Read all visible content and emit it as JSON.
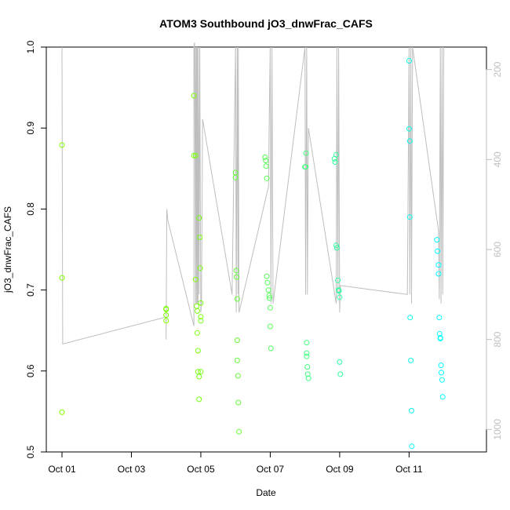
{
  "chart_data": {
    "type": "scatter",
    "title": "ATOM3 Southbound jO3_dnwFrac_CAFS",
    "xlabel": "Date",
    "ylabel": "jO3_dnwFrac_CAFS",
    "x_unit": "days from Oct 01",
    "xlim": [
      0,
      11.8
    ],
    "ylim": [
      0.5,
      1.0
    ],
    "x_ticks": [
      {
        "value": 0,
        "label": "Oct 01"
      },
      {
        "value": 2,
        "label": "Oct 03"
      },
      {
        "value": 4,
        "label": "Oct 05"
      },
      {
        "value": 6,
        "label": "Oct 07"
      },
      {
        "value": 8,
        "label": "Oct 09"
      },
      {
        "value": 10,
        "label": "Oct 11"
      }
    ],
    "y_ticks": [
      "0.5",
      "0.6",
      "0.7",
      "0.8",
      "0.9",
      "1.0"
    ],
    "y2_axis": {
      "lim": [
        1050,
        150
      ],
      "ticks": [
        "200",
        "400",
        "600",
        "800",
        "1000"
      ],
      "color": "#bebebe"
    },
    "colors": {
      "line": "#bebebe",
      "points_start": "#7fff00",
      "points_end": "#00ffff"
    },
    "grid": false,
    "series": [
      {
        "kind": "points",
        "x": [
          0.0,
          0.0,
          0.0,
          3.0,
          3.0,
          3.0,
          3.0,
          3.8,
          3.8,
          3.85,
          3.85,
          3.88,
          3.9,
          3.9,
          3.92,
          3.92,
          3.95,
          3.95,
          3.95,
          3.97,
          3.98,
          4.0,
          4.0,
          4.0,
          4.0,
          5.0,
          5.0,
          5.02,
          5.03,
          5.05,
          5.05,
          5.05,
          5.07,
          5.08,
          5.1,
          5.85,
          5.87,
          5.88,
          5.9,
          5.9,
          5.92,
          5.95,
          5.97,
          5.98,
          6.0,
          6.0,
          6.02,
          7.0,
          7.02,
          7.03,
          7.05,
          7.05,
          7.05,
          7.07,
          7.08,
          7.1,
          7.85,
          7.87,
          7.9,
          7.9,
          7.92,
          7.95,
          7.97,
          7.98,
          8.0,
          8.0,
          8.02,
          10.0,
          10.0,
          10.02,
          10.02,
          10.03,
          10.05,
          10.07,
          10.08,
          10.8,
          10.82,
          10.85,
          10.85,
          10.87,
          10.88,
          10.9,
          10.9,
          10.92,
          10.93,
          10.95,
          10.97
        ],
        "y": [
          0.879,
          0.715,
          0.549,
          0.677,
          0.676,
          0.669,
          0.662,
          0.94,
          0.866,
          0.866,
          0.713,
          0.68,
          0.674,
          0.647,
          0.625,
          0.599,
          0.593,
          0.565,
          0.789,
          0.765,
          0.727,
          0.684,
          0.667,
          0.662,
          0.599,
          0.845,
          0.839,
          0.724,
          0.716,
          0.689,
          0.638,
          0.613,
          0.594,
          0.561,
          0.525,
          0.864,
          0.86,
          0.853,
          0.838,
          0.717,
          0.709,
          0.7,
          0.693,
          0.69,
          0.678,
          0.655,
          0.628,
          0.852,
          0.852,
          0.869,
          0.635,
          0.622,
          0.618,
          0.605,
          0.596,
          0.591,
          0.862,
          0.858,
          0.867,
          0.755,
          0.752,
          0.712,
          0.7,
          0.699,
          0.691,
          0.611,
          0.596,
          0.983,
          0.899,
          0.884,
          0.79,
          0.666,
          0.613,
          0.551,
          0.507,
          0.762,
          0.748,
          0.731,
          0.72,
          0.666,
          0.646,
          0.641,
          0.64,
          0.607,
          0.598,
          0.589,
          0.568
        ],
        "color_gradient": [
          "#7fff00",
          "#00ffff"
        ]
      },
      {
        "kind": "line",
        "axis": "right",
        "x": [
          0.0,
          0.0,
          0.02,
          3.0,
          3.0,
          3.02,
          3.05,
          3.8,
          3.8,
          3.82,
          3.85,
          3.85,
          3.87,
          3.88,
          3.9,
          3.9,
          3.92,
          3.93,
          3.95,
          3.97,
          4.0,
          4.02,
          4.05,
          4.9,
          5.0,
          5.02,
          5.05,
          5.07,
          5.08,
          5.1,
          5.95,
          5.97,
          6.0,
          6.02,
          6.05,
          6.08,
          7.0,
          7.02,
          7.05,
          7.07,
          7.1,
          7.9,
          7.92,
          7.95,
          7.97,
          8.0,
          8.02,
          9.95,
          10.0,
          10.02,
          10.05,
          10.07,
          10.1,
          10.85,
          10.87,
          10.9,
          10.92,
          10.95,
          10.97,
          11.0
        ],
        "y": [
          150,
          150,
          810,
          750,
          800,
          510,
          535,
          770,
          150,
          140,
          720,
          150,
          720,
          150,
          720,
          150,
          720,
          150,
          700,
          150,
          740,
          720,
          310,
          700,
          150,
          740,
          150,
          700,
          150,
          740,
          460,
          320,
          150,
          720,
          150,
          720,
          150,
          700,
          150,
          700,
          330,
          720,
          150,
          700,
          150,
          740,
          680,
          700,
          150,
          700,
          150,
          720,
          150,
          560,
          710,
          150,
          720,
          150,
          700,
          150
        ]
      }
    ]
  }
}
